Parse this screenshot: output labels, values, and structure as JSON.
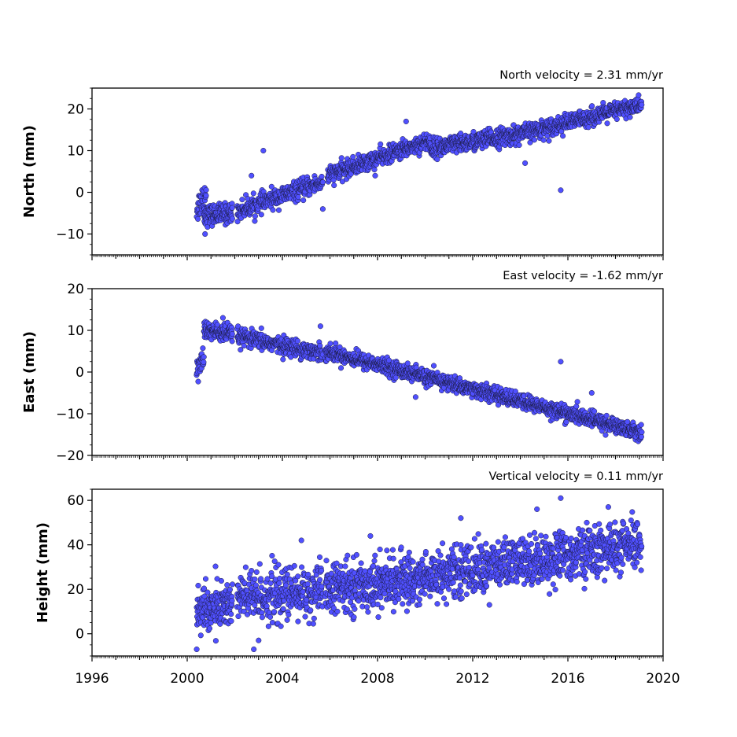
{
  "chart_data": [
    {
      "type": "scatter",
      "title": "North velocity = 2.31 mm/yr",
      "ylabel": "North (mm)",
      "xlim": [
        1996,
        2020
      ],
      "ylim": [
        -15,
        25
      ],
      "yticks": [
        -10,
        0,
        10,
        20
      ],
      "ytick_labels": [
        "−10",
        "0",
        "10",
        "20"
      ],
      "marker_color": "#5050ff",
      "series": [
        {
          "segments": [
            {
              "x0": 2000.4,
              "x1": 2000.8,
              "y0": -4,
              "y1": 0,
              "n": 35,
              "noise": 1.8
            },
            {
              "x0": 2000.7,
              "x1": 2001.9,
              "y0": -5.5,
              "y1": -5,
              "n": 130,
              "noise": 1.2
            },
            {
              "x0": 2002.1,
              "x1": 2005.7,
              "y0": -4.5,
              "y1": 2.5,
              "n": 330,
              "noise": 1.1
            },
            {
              "x0": 2005.9,
              "x1": 2010.2,
              "y0": 4,
              "y1": 12.5,
              "n": 430,
              "noise": 1.0
            },
            {
              "x0": 2010.2,
              "x1": 2014.0,
              "y0": 10.5,
              "y1": 14,
              "n": 400,
              "noise": 1.1
            },
            {
              "x0": 2014.0,
              "x1": 2019.1,
              "y0": 14,
              "y1": 21,
              "n": 520,
              "noise": 1.0
            }
          ],
          "outliers": [
            [
              2000.75,
              -10
            ],
            [
              2003.2,
              10
            ],
            [
              2002.7,
              4
            ],
            [
              2015.7,
              0.5
            ],
            [
              2005.7,
              -4
            ],
            [
              2009.2,
              17
            ],
            [
              2014.2,
              7
            ],
            [
              2007.9,
              4
            ]
          ]
        }
      ]
    },
    {
      "type": "scatter",
      "title": "East velocity = -1.62 mm/yr",
      "ylabel": "East (mm)",
      "xlim": [
        1996,
        2020
      ],
      "ylim": [
        -20,
        20
      ],
      "yticks": [
        -20,
        -10,
        0,
        10,
        20
      ],
      "ytick_labels": [
        "−20",
        "−10",
        "0",
        "10",
        "20"
      ],
      "marker_color": "#5050ff",
      "series": [
        {
          "segments": [
            {
              "x0": 2000.4,
              "x1": 2000.7,
              "y0": 0,
              "y1": 4,
              "n": 30,
              "noise": 1.5
            },
            {
              "x0": 2000.7,
              "x1": 2001.9,
              "y0": 10,
              "y1": 9,
              "n": 130,
              "noise": 1.1
            },
            {
              "x0": 2002.1,
              "x1": 2005.7,
              "y0": 8.5,
              "y1": 4.5,
              "n": 330,
              "noise": 1.0
            },
            {
              "x0": 2005.8,
              "x1": 2019.1,
              "y0": 5,
              "y1": -14.5,
              "n": 1400,
              "noise": 0.9
            }
          ],
          "outliers": [
            [
              2015.7,
              2.5
            ],
            [
              2005.6,
              11
            ],
            [
              2001.5,
              13
            ],
            [
              2009.6,
              -6
            ],
            [
              2017.0,
              -5
            ]
          ]
        }
      ]
    },
    {
      "type": "scatter",
      "title": "Vertical velocity = 0.11 mm/yr",
      "ylabel": "Height (mm)",
      "xlim": [
        1996,
        2020
      ],
      "ylim": [
        -10,
        65
      ],
      "yticks": [
        0,
        20,
        40,
        60
      ],
      "ytick_labels": [
        "0",
        "20",
        "40",
        "60"
      ],
      "xticks": [
        1996,
        2000,
        2004,
        2008,
        2012,
        2016,
        2020
      ],
      "xtick_labels": [
        "1996",
        "2000",
        "2004",
        "2008",
        "2012",
        "2016",
        "2020"
      ],
      "marker_color": "#5050ff",
      "series": [
        {
          "segments": [
            {
              "x0": 2000.4,
              "x1": 2001.9,
              "y0": 10,
              "y1": 14,
              "n": 160,
              "noise": 5.5
            },
            {
              "x0": 2002.1,
              "x1": 2005.7,
              "y0": 16,
              "y1": 19,
              "n": 330,
              "noise": 6.0
            },
            {
              "x0": 2005.8,
              "x1": 2010.0,
              "y0": 20,
              "y1": 25,
              "n": 430,
              "noise": 5.5
            },
            {
              "x0": 2010.0,
              "x1": 2019.1,
              "y0": 26,
              "y1": 40,
              "n": 900,
              "noise": 5.5
            }
          ],
          "outliers": [
            [
              2000.4,
              -7
            ],
            [
              2002.8,
              -7
            ],
            [
              2004.8,
              42
            ],
            [
              2015.7,
              61
            ],
            [
              2017.7,
              57
            ],
            [
              2011.5,
              52
            ],
            [
              2012.7,
              13
            ],
            [
              2003.0,
              -3
            ],
            [
              2014.7,
              56
            ],
            [
              2007.7,
              44
            ]
          ]
        }
      ]
    }
  ]
}
